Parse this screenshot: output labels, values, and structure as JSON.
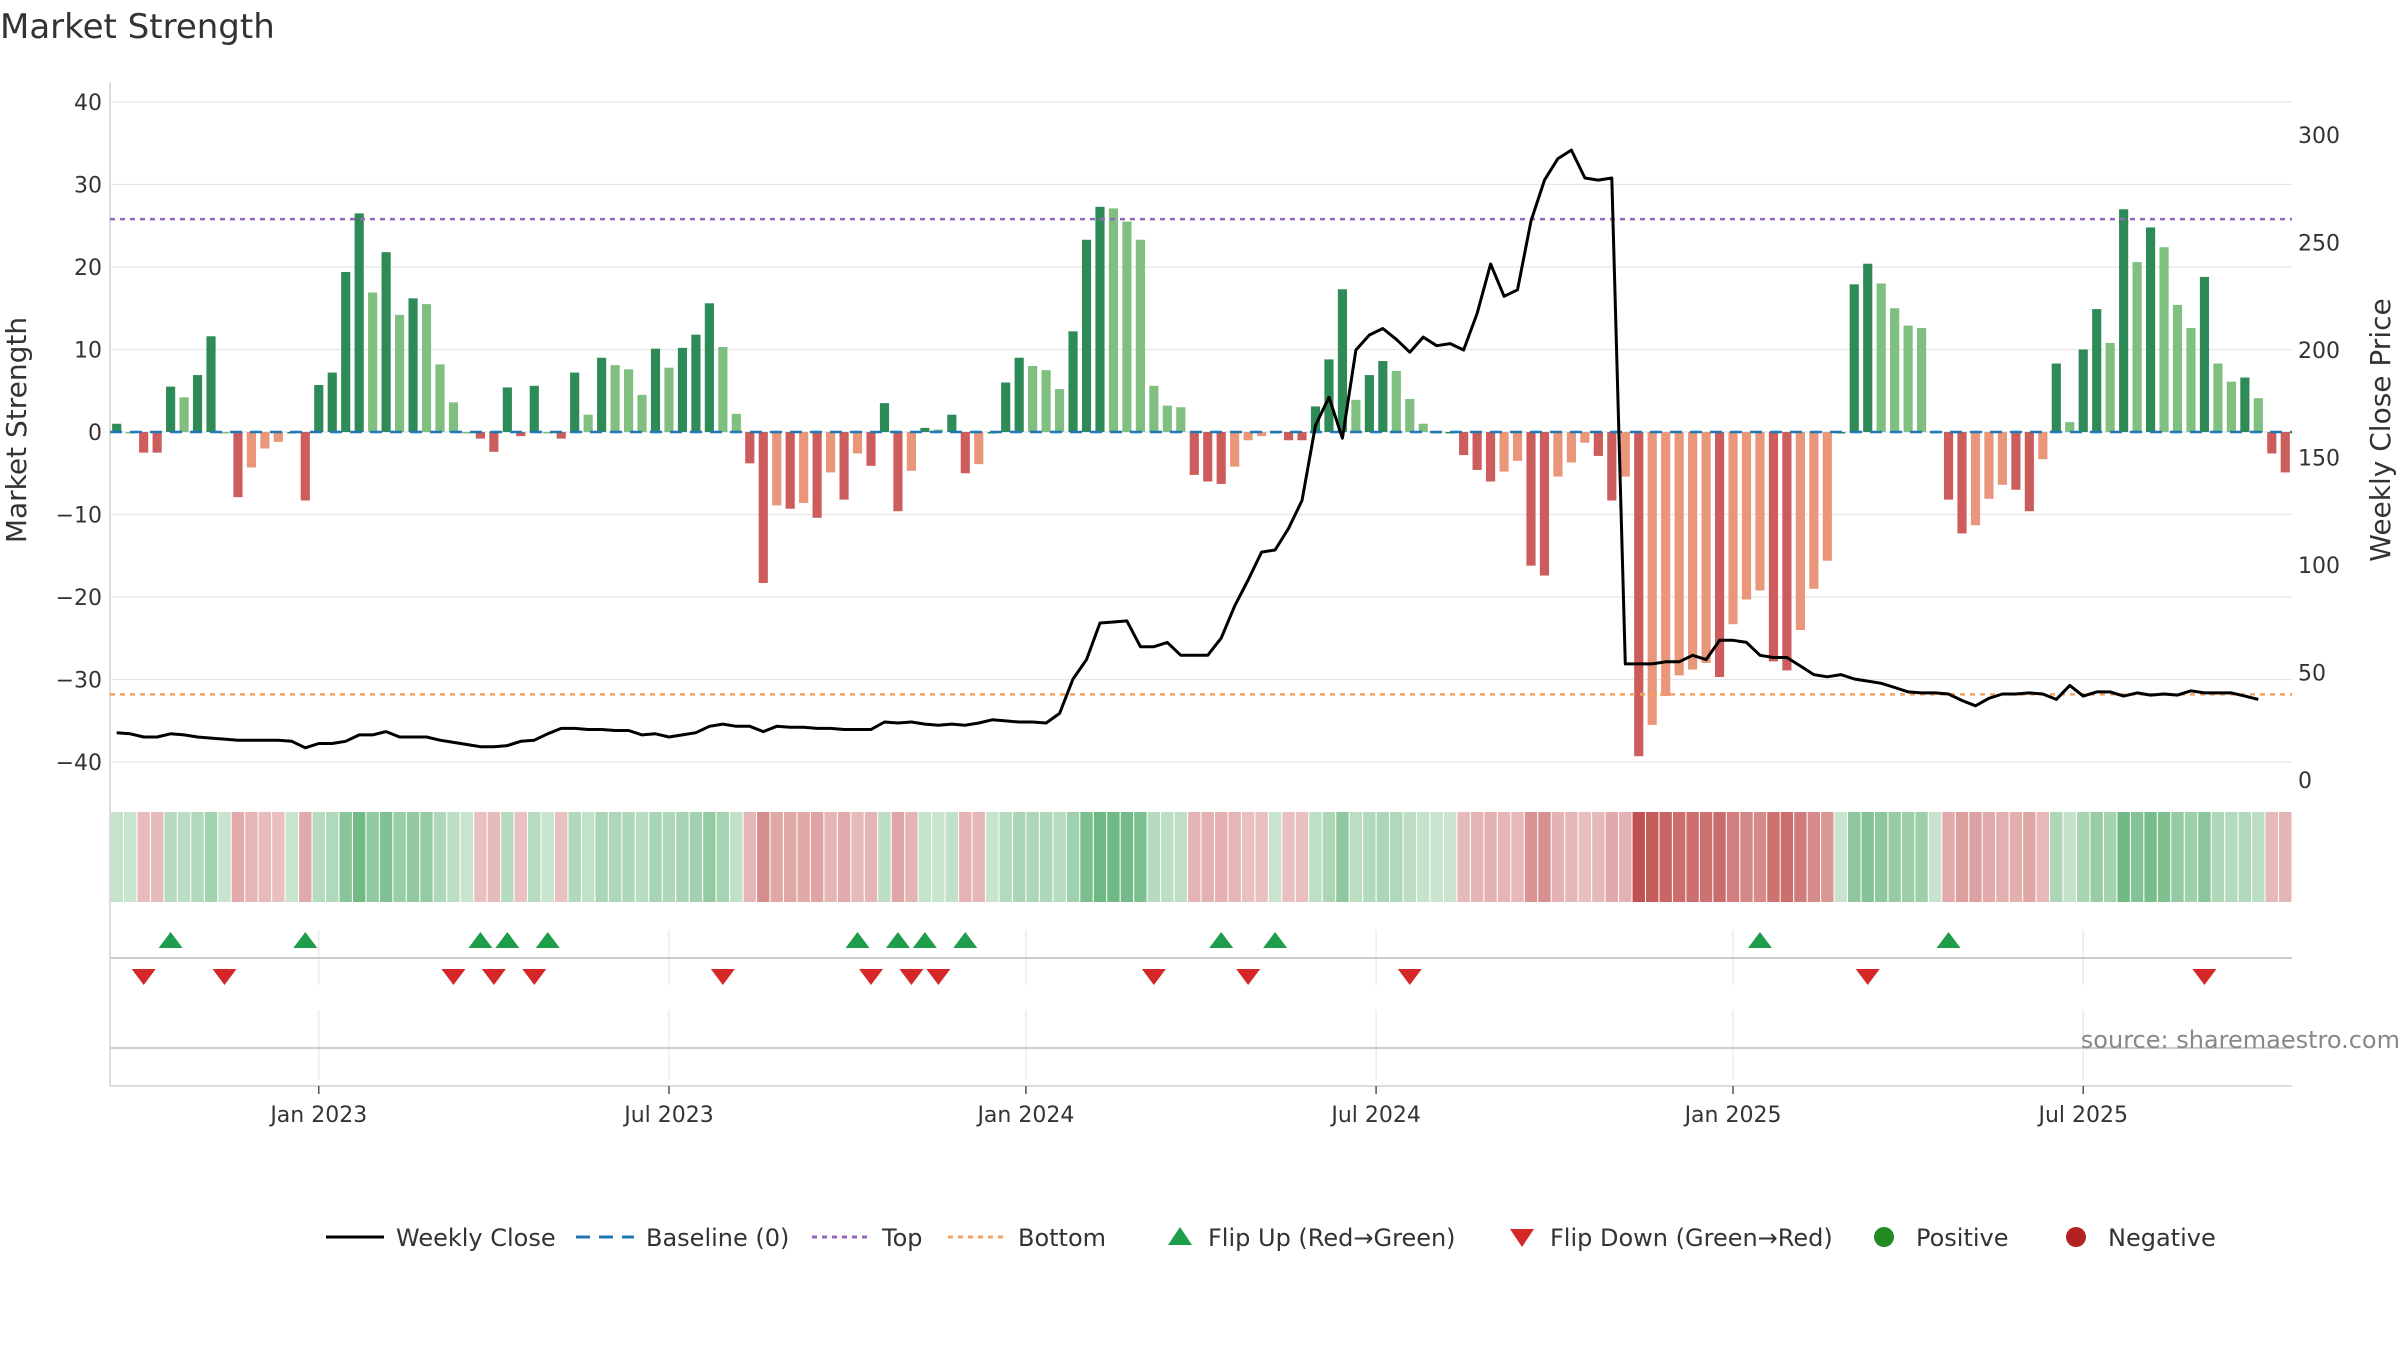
{
  "title": "Market Strength",
  "source": "source: sharemaestro.com",
  "colors": {
    "pos_strong": "#2e8b57",
    "pos_light": "#7fbf7f",
    "neg_strong": "#cd5c5c",
    "neg_light": "#e9967a",
    "price": "#000000",
    "baseline": "#1f77b4",
    "top": "#9467bd",
    "bottom": "#f4a261",
    "flip_up": "#1e9e4a",
    "flip_down": "#d62728",
    "positive": "#228b22",
    "negative": "#b22222",
    "grid": "#e6e6e6"
  },
  "legend": [
    {
      "label": "Weekly Close",
      "kind": "line",
      "color": "#000000",
      "icon": "line-solid-icon"
    },
    {
      "label": "Baseline (0)",
      "kind": "dash",
      "color": "#1f77b4",
      "icon": "line-dashed-icon"
    },
    {
      "label": "Top",
      "kind": "dot",
      "color": "#9467bd",
      "icon": "line-dotted-icon"
    },
    {
      "label": "Bottom",
      "kind": "dot",
      "color": "#f4a261",
      "icon": "line-dotted-icon"
    },
    {
      "label": "Flip Up (Red→Green)",
      "kind": "up",
      "color": "#1e9e4a",
      "icon": "triangle-up-icon"
    },
    {
      "label": "Flip Down (Green→Red)",
      "kind": "down",
      "color": "#d62728",
      "icon": "triangle-down-icon"
    },
    {
      "label": "Positive",
      "kind": "circle",
      "color": "#228b22",
      "icon": "circle-icon"
    },
    {
      "label": "Negative",
      "kind": "circle",
      "color": "#b22222",
      "icon": "circle-icon"
    }
  ],
  "chart_data": {
    "type": "bar",
    "title": "Market Strength",
    "ylabel": "Market Strength",
    "y2label": "Weekly Close Price",
    "ylim": [
      -42,
      42
    ],
    "y2lim": [
      0,
      310
    ],
    "yticks": [
      40,
      30,
      20,
      10,
      0,
      -10,
      -20,
      -30,
      -40
    ],
    "ytick_labels": [
      "40",
      "30",
      "20",
      "10",
      "0",
      "−10",
      "−20",
      "−30",
      "−40"
    ],
    "y2ticks": [
      300,
      250,
      200,
      150,
      100,
      50,
      0
    ],
    "xtick_labels": [
      "Jan 2023",
      "Jul 2023",
      "Jan 2024",
      "Jul 2024",
      "Jan 2025",
      "Jul 2025"
    ],
    "xtick_weeks": [
      15,
      41,
      67.5,
      93.5,
      120,
      146
    ],
    "top_level": 25.8,
    "bottom_level": -31.8,
    "grid": true,
    "strength": [
      1,
      0,
      -2.5,
      -2.5,
      5.5,
      4.2,
      6.9,
      11.6,
      0,
      -7.9,
      -4.3,
      -2,
      -1.2,
      0,
      -8.3,
      5.7,
      7.2,
      19.4,
      26.5,
      16.9,
      21.8,
      14.2,
      16.2,
      15.5,
      8.2,
      3.6,
      0,
      -0.8,
      -2.4,
      5.4,
      -0.5,
      5.6,
      0,
      -0.8,
      7.2,
      2.1,
      9,
      8.1,
      7.6,
      4.5,
      10.1,
      7.8,
      10.2,
      11.8,
      15.6,
      10.3,
      2.2,
      -3.8,
      -18.3,
      -8.9,
      -9.3,
      -8.6,
      -10.4,
      -4.9,
      -8.2,
      -2.6,
      -4.1,
      3.5,
      -9.6,
      -4.7,
      0.5,
      0.3,
      2.1,
      -5,
      -3.9,
      0,
      6,
      9,
      8,
      7.5,
      5.2,
      12.2,
      23.3,
      27.3,
      27.1,
      25.5,
      23.3,
      5.6,
      3.2,
      3,
      -5.2,
      -6,
      -6.3,
      -4.2,
      -1,
      -0.5,
      0,
      -1,
      -1,
      3.1,
      8.8,
      17.3,
      3.9,
      6.9,
      8.6,
      7.4,
      4,
      1,
      0,
      0,
      -2.8,
      -4.6,
      -6,
      -4.8,
      -3.5,
      -16.2,
      -17.4,
      -5.4,
      -3.7,
      -1.3,
      -2.9,
      -8.3,
      -5.4,
      -39.3,
      -35.5,
      -32,
      -29.5,
      -28.8,
      -28,
      -29.7,
      -23.3,
      -20.3,
      -19.2,
      -27.8,
      -28.9,
      -24,
      -19,
      -15.6,
      0,
      17.9,
      20.4,
      18,
      15,
      12.9,
      12.6,
      0,
      -8.2,
      -12.3,
      -11.3,
      -8.1,
      -6.4,
      -7,
      -9.6,
      -3.3,
      8.3,
      1.2,
      10,
      14.9,
      10.8,
      27,
      20.6,
      24.8,
      22.4,
      15.4,
      12.6,
      18.8,
      8.3,
      6.1,
      6.6,
      4.1,
      -2.6,
      -4.9
    ],
    "weekly_close": [
      22,
      21.5,
      20,
      20,
      21.5,
      21,
      20,
      19.5,
      19,
      18.5,
      18.5,
      18.5,
      18.5,
      18,
      15,
      17,
      17,
      18,
      21,
      21,
      22.5,
      20,
      20,
      20,
      18.5,
      17.5,
      16.5,
      15.5,
      15.5,
      16,
      18,
      18.5,
      21.5,
      24,
      24,
      23.5,
      23.5,
      23,
      23,
      21,
      21.5,
      20,
      21,
      22,
      25,
      26,
      25,
      25,
      22.5,
      25,
      24.5,
      24.5,
      24,
      24,
      23.5,
      23.5,
      23.5,
      27,
      26.5,
      27,
      26,
      25.5,
      26,
      25.5,
      26.5,
      28,
      27.5,
      27,
      27,
      26.5,
      31,
      47,
      56,
      73,
      73.5,
      74,
      62,
      62,
      64,
      58,
      58,
      58,
      66,
      81,
      93,
      106,
      107,
      117,
      130,
      165,
      178,
      159,
      200,
      207,
      210,
      205,
      199,
      206,
      202,
      203,
      200,
      217,
      240,
      225,
      228,
      260,
      279,
      289,
      293,
      280,
      279,
      280,
      54,
      54,
      54,
      55,
      55,
      58,
      56,
      65,
      65,
      64,
      58,
      57,
      57,
      53,
      49,
      48,
      49,
      47,
      46,
      45,
      43,
      41,
      40.5,
      40.5,
      40,
      37,
      34.5,
      38,
      40,
      40,
      40.5,
      40,
      37.5,
      44,
      39,
      41,
      41,
      39,
      40.5,
      39.5,
      40,
      39.5,
      41.5,
      40.5,
      40.5,
      40.5,
      39,
      37.5
    ]
  },
  "heat_strip": {
    "label": "strength heat strip"
  },
  "flips": {
    "up_weeks": [
      4,
      14,
      27,
      29,
      32,
      55,
      58,
      60,
      63,
      82,
      86,
      122,
      136
    ],
    "down_weeks": [
      2,
      8,
      25,
      28,
      31,
      45,
      56,
      59,
      61,
      77,
      84,
      96,
      130,
      155
    ]
  }
}
